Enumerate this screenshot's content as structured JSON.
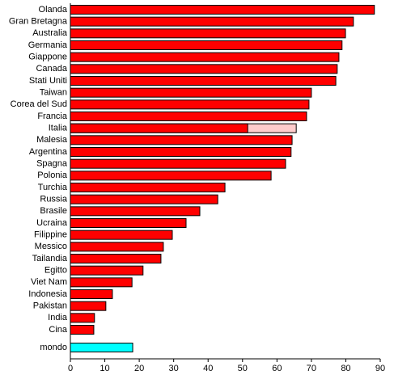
{
  "chart_data": {
    "type": "hbar",
    "categories": [
      "Olanda",
      "Gran Bretagna",
      "Australia",
      "Germania",
      "Giappone",
      "Canada",
      "Stati Uniti",
      "Taiwan",
      "Corea del Sud",
      "Francia",
      "Italia",
      "Malesia",
      "Argentina",
      "Spagna",
      "Polonia",
      "Turchia",
      "Russia",
      "Brasile",
      "Ucraina",
      "Filippine",
      "Messico",
      "Tailandia",
      "Egitto",
      "Viet Nam",
      "Indonesia",
      "Pakistan",
      "India",
      "Cina"
    ],
    "series": [
      {
        "color": "#ff0000",
        "values": [
          88.3,
          82.2,
          79.9,
          78.9,
          78.0,
          77.5,
          77.1,
          70.0,
          69.3,
          68.6,
          51.5,
          64.4,
          64.1,
          62.5,
          58.3,
          44.9,
          42.8,
          37.6,
          33.6,
          29.6,
          27.0,
          26.3,
          21.1,
          17.9,
          12.2,
          10.3,
          7.0,
          6.8
        ]
      },
      {
        "color": "#ffcccc",
        "values": [
          null,
          null,
          null,
          null,
          null,
          null,
          null,
          null,
          null,
          null,
          65.6,
          null,
          null,
          null,
          null,
          null,
          null,
          null,
          null,
          null,
          null,
          null,
          null,
          null,
          null,
          null,
          null,
          null
        ]
      }
    ],
    "world": {
      "label": "mondo",
      "value": 18.1,
      "color": "#00ffff"
    },
    "xlim": [
      0,
      90
    ],
    "xticks": [
      0,
      10,
      20,
      30,
      40,
      50,
      60,
      70,
      80,
      90
    ]
  }
}
